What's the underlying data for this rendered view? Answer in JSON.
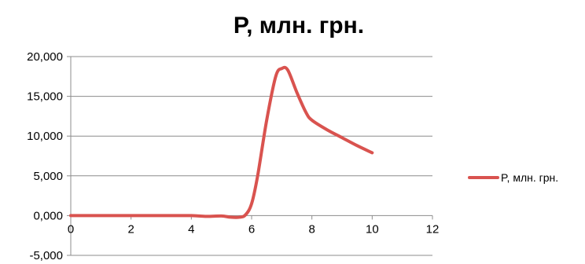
{
  "chart_data": {
    "type": "line",
    "title": "P, млн. грн.",
    "xlabel": "",
    "ylabel": "",
    "xlim": [
      0,
      12
    ],
    "ylim": [
      -5000,
      20000
    ],
    "x_ticks": [
      0,
      2,
      4,
      6,
      8,
      10,
      12
    ],
    "y_ticks": [
      -5000,
      0,
      5000,
      10000,
      15000,
      20000
    ],
    "x_tick_labels": [
      "0",
      "2",
      "4",
      "6",
      "8",
      "10",
      "12"
    ],
    "y_tick_labels": [
      "-5,000",
      "0,000",
      "5,000",
      "10,000",
      "15,000",
      "20,000"
    ],
    "grid": "horizontal",
    "legend_position": "right",
    "series": [
      {
        "name": "P, млн. грн.",
        "color": "#d9534f",
        "x": [
          0,
          1,
          2,
          3,
          4,
          4.5,
          5,
          5.3,
          5.6,
          5.8,
          6.0,
          6.2,
          6.5,
          6.8,
          7.0,
          7.2,
          7.5,
          7.8,
          8.0,
          8.5,
          9,
          9.5,
          10
        ],
        "y": [
          0,
          0,
          0,
          0,
          0,
          -100,
          -50,
          -200,
          -200,
          100,
          1500,
          5000,
          12000,
          17500,
          18500,
          18300,
          15500,
          13000,
          12000,
          10800,
          9800,
          8800,
          7900
        ]
      }
    ]
  }
}
